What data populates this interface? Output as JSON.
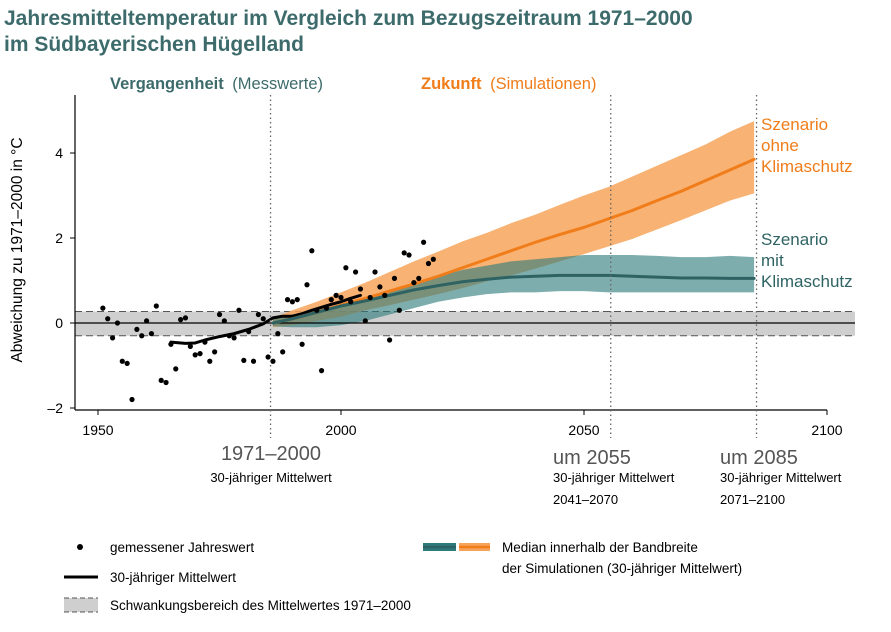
{
  "title": {
    "line1": "Jahresmitteltemperatur im Vergleich zum Bezugszeitraum 1971–2000",
    "line2": "im Südbayerischen Hügelland"
  },
  "colors": {
    "teal": "#3d6b6b",
    "teal_line": "#2f6363",
    "teal_band": "#2e7b7b",
    "orange": "#f07d1a",
    "orange_band": "#f7a45a",
    "gray_band": "#cfcfcf",
    "black": "#000000"
  },
  "header_labels": {
    "past_bold": "Vergangenheit",
    "past_light": "(Messwerte)",
    "future_bold": "Zukunft",
    "future_light": "(Simulationen)"
  },
  "period_labels": [
    {
      "big": "1971–2000",
      "line1": "30-jähriger Mittelwert",
      "line2": ""
    },
    {
      "big": "um 2055",
      "line1": "30-jähriger Mittelwert",
      "line2": "2041–2070"
    },
    {
      "big": "um 2085",
      "line1": "30-jähriger Mittelwert",
      "line2": "2071–2100"
    }
  ],
  "scenario_labels": {
    "no_protection": [
      "Szenario",
      "ohne",
      "Klimaschutz"
    ],
    "with_protection": [
      "Szenario",
      "mit",
      "Klimaschutz"
    ]
  },
  "legend": {
    "points": "gemessener Jahreswert",
    "mean": "30-jähriger Mittelwert",
    "band": "Schwankungsbereich des Mittelwertes 1971–2000",
    "median_line1": "Median innerhalb der Bandbreite",
    "median_line2": "der Simulationen (30-jähriger Mittelwert)"
  },
  "chart_data": {
    "type": "line",
    "title": "Jahresmitteltemperatur im Vergleich zum Bezugszeitraum 1971–2000 im Südbayerischen Hügelland",
    "xlabel": "",
    "ylabel": "Abweichung zu 1971–2000 in °C",
    "xlim": [
      1945,
      2100
    ],
    "ylim": [
      -2,
      5.5
    ],
    "xticks": [
      1950,
      2000,
      2050,
      2100
    ],
    "yticks": [
      -2,
      0,
      2,
      4
    ],
    "ytick_labels": [
      "–2",
      "0",
      "2",
      "4"
    ],
    "grid": false,
    "reference_band": [
      -0.3,
      0.27
    ],
    "reference_lines": [
      1985.5,
      2055.5,
      2085.5
    ],
    "annual_values": {
      "x": [
        1951,
        1952,
        1953,
        1954,
        1955,
        1956,
        1957,
        1958,
        1959,
        1960,
        1961,
        1962,
        1963,
        1964,
        1965,
        1966,
        1967,
        1968,
        1969,
        1970,
        1971,
        1972,
        1973,
        1974,
        1975,
        1976,
        1977,
        1978,
        1979,
        1980,
        1981,
        1982,
        1983,
        1984,
        1985,
        1986,
        1987,
        1988,
        1989,
        1990,
        1991,
        1992,
        1993,
        1994,
        1995,
        1996,
        1997,
        1998,
        1999,
        2000,
        2001,
        2002,
        2003,
        2004,
        2005,
        2006,
        2007,
        2008,
        2009,
        2010,
        2011,
        2012,
        2013,
        2014,
        2015,
        2016,
        2017,
        2018,
        2019
      ],
      "y": [
        0.35,
        0.1,
        -0.35,
        0.0,
        -0.9,
        -0.95,
        -1.8,
        -0.15,
        -0.3,
        0.05,
        -0.25,
        0.4,
        -1.35,
        -1.4,
        -0.5,
        -1.08,
        0.08,
        0.12,
        -0.55,
        -0.75,
        -0.72,
        -0.45,
        -0.9,
        -0.68,
        0.2,
        0.05,
        -0.3,
        -0.35,
        0.3,
        -0.88,
        -0.2,
        -0.9,
        0.2,
        0.1,
        -0.8,
        -0.9,
        -0.25,
        -0.68,
        0.55,
        0.5,
        0.55,
        -0.5,
        0.9,
        1.7,
        0.3,
        -1.12,
        0.35,
        0.55,
        0.65,
        0.6,
        1.3,
        0.5,
        1.2,
        0.8,
        0.05,
        0.6,
        1.2,
        0.85,
        0.65,
        -0.4,
        1.05,
        0.3,
        1.65,
        1.6,
        0.95,
        1.05,
        1.9,
        1.4,
        1.5
      ]
    },
    "series": [
      {
        "name": "30-jähriger Mittelwert (Messwerte)",
        "color": "#000000",
        "x": [
          1965,
          1968,
          1970,
          1972,
          1975,
          1978,
          1981,
          1984,
          1986,
          1988,
          1990,
          1992,
          1994,
          1996,
          1998,
          2000,
          2002,
          2004
        ],
        "y": [
          -0.45,
          -0.48,
          -0.47,
          -0.4,
          -0.32,
          -0.25,
          -0.15,
          -0.02,
          0.12,
          0.16,
          0.16,
          0.22,
          0.3,
          0.37,
          0.44,
          0.5,
          0.58,
          0.65
        ]
      },
      {
        "name": "Median Szenario ohne Klimaschutz",
        "color": "#f07d1a",
        "x": [
          1986,
          1990,
          1995,
          2000,
          2005,
          2010,
          2015,
          2020,
          2025,
          2030,
          2035,
          2040,
          2045,
          2050,
          2055,
          2060,
          2065,
          2070,
          2075,
          2080,
          2085
        ],
        "y": [
          0.0,
          0.1,
          0.25,
          0.42,
          0.58,
          0.75,
          0.92,
          1.1,
          1.3,
          1.5,
          1.7,
          1.9,
          2.08,
          2.25,
          2.45,
          2.65,
          2.88,
          3.1,
          3.35,
          3.6,
          3.85
        ]
      },
      {
        "name": "Median Szenario mit Klimaschutz",
        "color": "#2f6363",
        "x": [
          1986,
          1990,
          1995,
          2000,
          2005,
          2010,
          2015,
          2020,
          2025,
          2030,
          2035,
          2040,
          2045,
          2050,
          2055,
          2060,
          2065,
          2070,
          2075,
          2080,
          2085
        ],
        "y": [
          0.0,
          0.1,
          0.25,
          0.4,
          0.52,
          0.65,
          0.78,
          0.88,
          0.97,
          1.03,
          1.08,
          1.1,
          1.12,
          1.12,
          1.12,
          1.1,
          1.08,
          1.06,
          1.06,
          1.05,
          1.05
        ]
      }
    ],
    "bands": [
      {
        "name": "Bandbreite ohne Klimaschutz",
        "color": "#f7a45a",
        "x": [
          1986,
          1990,
          1995,
          2000,
          2005,
          2010,
          2015,
          2020,
          2025,
          2030,
          2035,
          2040,
          2045,
          2050,
          2055,
          2060,
          2065,
          2070,
          2075,
          2080,
          2085
        ],
        "lower": [
          -0.1,
          -0.05,
          0.05,
          0.15,
          0.3,
          0.42,
          0.55,
          0.68,
          0.82,
          0.98,
          1.12,
          1.28,
          1.45,
          1.62,
          1.8,
          1.98,
          2.2,
          2.42,
          2.65,
          2.88,
          3.05
        ],
        "upper": [
          0.12,
          0.3,
          0.5,
          0.72,
          0.95,
          1.2,
          1.45,
          1.68,
          1.92,
          2.12,
          2.35,
          2.55,
          2.78,
          3.0,
          3.2,
          3.45,
          3.7,
          3.95,
          4.2,
          4.5,
          4.75
        ]
      },
      {
        "name": "Bandbreite mit Klimaschutz",
        "color": "#2e7b7b",
        "x": [
          1986,
          1990,
          1995,
          2000,
          2005,
          2010,
          2015,
          2020,
          2025,
          2030,
          2035,
          2040,
          2045,
          2050,
          2055,
          2060,
          2065,
          2070,
          2075,
          2080,
          2085
        ],
        "lower": [
          -0.08,
          -0.1,
          -0.1,
          -0.05,
          0.05,
          0.2,
          0.35,
          0.5,
          0.6,
          0.68,
          0.72,
          0.72,
          0.75,
          0.75,
          0.72,
          0.72,
          0.72,
          0.72,
          0.72,
          0.72,
          0.72
        ],
        "upper": [
          0.1,
          0.2,
          0.3,
          0.45,
          0.6,
          0.75,
          0.95,
          1.1,
          1.25,
          1.35,
          1.45,
          1.5,
          1.55,
          1.6,
          1.6,
          1.6,
          1.58,
          1.55,
          1.55,
          1.58,
          1.55
        ]
      }
    ]
  }
}
